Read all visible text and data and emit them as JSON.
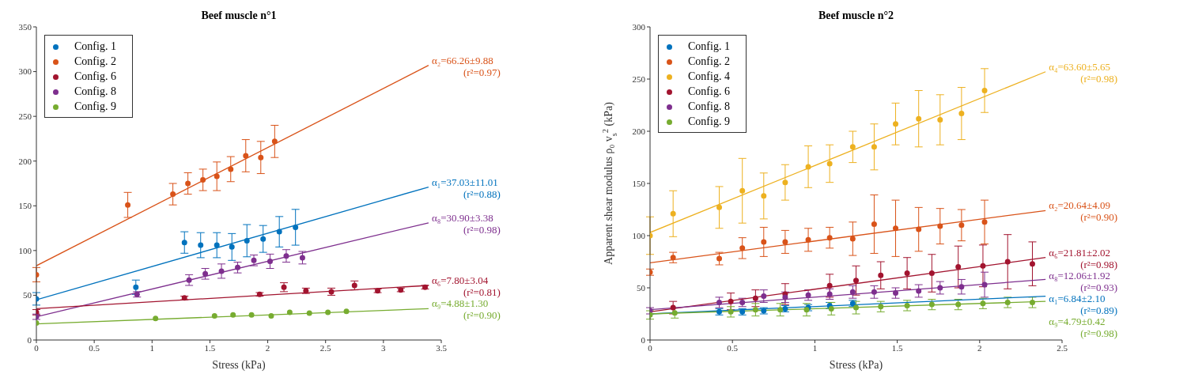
{
  "chart_data": [
    {
      "type": "scatter",
      "title": "Beef muscle n°1",
      "xlabel": "Stress (kPa)",
      "xlim": [
        0,
        3.5
      ],
      "xticks": [
        0,
        0.5,
        1,
        1.5,
        2,
        2.5,
        3,
        3.5
      ],
      "ylim": [
        0,
        350
      ],
      "yticks": [
        0,
        50,
        100,
        150,
        200,
        250,
        300,
        350
      ],
      "legend": "top left",
      "series": [
        {
          "name": "Config. 1",
          "color": "#0072bd",
          "x": [
            0,
            0.86,
            1.28,
            1.42,
            1.56,
            1.69,
            1.82,
            1.96,
            2.1,
            2.24
          ],
          "values": [
            46,
            59,
            109,
            106,
            106,
            104,
            111,
            113,
            121,
            126
          ],
          "errors": [
            7,
            8,
            12,
            14,
            14,
            15,
            18,
            15,
            17,
            20
          ]
        },
        {
          "name": "Config. 2",
          "color": "#d95319",
          "x": [
            0,
            0.79,
            1.18,
            1.31,
            1.44,
            1.56,
            1.68,
            1.81,
            1.94,
            2.06
          ],
          "values": [
            73,
            151,
            163,
            175,
            179,
            183,
            191,
            206,
            204,
            222
          ],
          "errors": [
            8,
            14,
            12,
            12,
            12,
            16,
            14,
            18,
            18,
            18
          ]
        },
        {
          "name": "Config. 6",
          "color": "#a2142f",
          "x": [
            0,
            1.28,
            1.93,
            2.14,
            2.33,
            2.55,
            2.75,
            2.95,
            3.15,
            3.36
          ],
          "values": [
            31,
            47,
            51,
            59,
            55,
            54,
            61,
            55,
            56,
            59
          ],
          "errors": [
            3,
            2,
            2,
            5,
            3,
            4,
            5,
            2,
            2,
            2
          ]
        },
        {
          "name": "Config. 8",
          "color": "#7e2f8e",
          "x": [
            0,
            0.87,
            1.32,
            1.46,
            1.6,
            1.74,
            1.88,
            2.02,
            2.16,
            2.3
          ],
          "values": [
            26,
            51,
            67,
            74,
            77,
            81,
            89,
            88,
            94,
            92
          ],
          "errors": [
            3,
            3,
            6,
            6,
            8,
            6,
            6,
            8,
            7,
            7
          ]
        },
        {
          "name": "Config. 9",
          "color": "#77ac30",
          "x": [
            0,
            1.03,
            1.54,
            1.7,
            1.86,
            2.03,
            2.19,
            2.36,
            2.52,
            2.68
          ],
          "values": [
            19,
            24,
            27,
            28,
            28,
            27,
            31,
            30,
            31,
            32
          ]
        },
        {
          "type": "line",
          "name": "α₂=66.26±9.88\n(r²=0.97)",
          "color": "#d95319",
          "x": [
            0,
            3.39
          ],
          "values": [
            83,
            307
          ]
        },
        {
          "type": "line",
          "name": "α₁=37.03±11.01\n(r²=0.88)",
          "color": "#0072bd",
          "x": [
            0,
            3.39
          ],
          "values": [
            45,
            171
          ]
        },
        {
          "type": "line",
          "name": "α₈=30.90±3.38\n(r²=0.98)",
          "color": "#7e2f8e",
          "x": [
            0,
            3.39
          ],
          "values": [
            26,
            131
          ]
        },
        {
          "type": "line",
          "name": "α₆=7.80±3.04\n(r²=0.81)",
          "color": "#a2142f",
          "x": [
            0,
            3.39
          ],
          "values": [
            35,
            61
          ]
        },
        {
          "type": "line",
          "name": "α₉=4.88±1.30\n(r²=0.90)",
          "color": "#77ac30",
          "x": [
            0,
            3.39
          ],
          "values": [
            18,
            35
          ]
        }
      ]
    },
    {
      "type": "scatter",
      "title": "Beef muscle n°2",
      "xlabel": "Stress (kPa)",
      "ylabel": "Apparent shear modulus ρ₀ v$_{s}$$^{2}$ (kPa)",
      "xlim": [
        0,
        2.5
      ],
      "xticks": [
        0,
        0.5,
        1,
        1.5,
        2,
        2.5
      ],
      "ylim": [
        0,
        300
      ],
      "yticks": [
        0,
        50,
        100,
        150,
        200,
        250,
        300
      ],
      "legend": "top left",
      "series": [
        {
          "name": "Config. 1",
          "color": "#0072bd",
          "x": [
            0.42,
            0.56,
            0.69,
            0.82,
            0.96,
            1.09,
            1.23
          ],
          "values": [
            27,
            27,
            28,
            30,
            31,
            33,
            35
          ],
          "errors": [
            3,
            3,
            3,
            3,
            3,
            3,
            3
          ]
        },
        {
          "name": "Config. 2",
          "color": "#d95319",
          "x": [
            0,
            0.14,
            0.42,
            0.56,
            0.69,
            0.82,
            0.96,
            1.09,
            1.23,
            1.36,
            1.49,
            1.63,
            1.76,
            1.89,
            2.03
          ],
          "values": [
            65,
            79,
            78,
            88,
            94,
            94,
            96,
            98,
            97,
            111,
            107,
            106,
            109,
            110,
            113
          ],
          "errors": [
            3,
            5,
            6,
            10,
            14,
            11,
            11,
            10,
            16,
            28,
            27,
            21,
            17,
            15,
            21
          ]
        },
        {
          "name": "Config. 4",
          "color": "#edb120",
          "x": [
            0,
            0.14,
            0.42,
            0.56,
            0.69,
            0.82,
            0.96,
            1.09,
            1.23,
            1.36,
            1.49,
            1.63,
            1.76,
            1.89,
            2.03
          ],
          "values": [
            100,
            121,
            127,
            143,
            138,
            151,
            166,
            169,
            185,
            185,
            207,
            212,
            211,
            217,
            239
          ],
          "errors": [
            18,
            22,
            20,
            31,
            22,
            17,
            20,
            18,
            15,
            22,
            20,
            27,
            24,
            25,
            21
          ]
        },
        {
          "name": "Config. 6",
          "color": "#a2142f",
          "x": [
            0.14,
            0.49,
            0.64,
            0.82,
            0.96,
            1.09,
            1.25,
            1.4,
            1.56,
            1.71,
            1.87,
            2.02,
            2.17,
            2.32
          ],
          "values": [
            31,
            37,
            40,
            44,
            null,
            52,
            57,
            62,
            64,
            64,
            70,
            71,
            75,
            73
          ],
          "errors": [
            6,
            8,
            8,
            10,
            null,
            11,
            14,
            13,
            15,
            18,
            20,
            20,
            26,
            21
          ]
        },
        {
          "name": "Config. 8",
          "color": "#7e2f8e",
          "x": [
            0,
            0.42,
            0.56,
            0.69,
            0.82,
            0.96,
            1.09,
            1.23,
            1.36,
            1.49,
            1.63,
            1.76,
            1.89,
            2.03
          ],
          "values": [
            28,
            36,
            36,
            42,
            41,
            43,
            44,
            46,
            46,
            45,
            47,
            50,
            51,
            53
          ],
          "errors": [
            3,
            5,
            4,
            6,
            5,
            5,
            5,
            6,
            6,
            5,
            6,
            6,
            7,
            12
          ]
        },
        {
          "name": "Config. 9",
          "color": "#77ac30",
          "x": [
            0,
            0.15,
            0.49,
            0.64,
            0.79,
            0.95,
            1.1,
            1.25,
            1.4,
            1.56,
            1.71,
            1.87,
            2.02,
            2.17,
            2.32
          ],
          "values": [
            24,
            26,
            27,
            29,
            29,
            29,
            30,
            31,
            32,
            33,
            34,
            34,
            35,
            36,
            36
          ],
          "errors": [
            4,
            5,
            5,
            6,
            6,
            6,
            6,
            6,
            5,
            5,
            5,
            5,
            5,
            5,
            5
          ]
        },
        {
          "type": "line",
          "name": "α₄=63.60±5.65\n(r²=0.98)",
          "color": "#edb120",
          "x": [
            0,
            2.4
          ],
          "values": [
            103,
            257
          ]
        },
        {
          "type": "line",
          "name": "α₂=20.64±4.09\n(r²=0.90)",
          "color": "#d95319",
          "x": [
            0,
            2.4
          ],
          "values": [
            74,
            124
          ]
        },
        {
          "type": "line",
          "name": "α₆=21.81±2.02\n(r²=0.98)",
          "color": "#a2142f",
          "x": [
            0,
            2.4
          ],
          "values": [
            27,
            79
          ]
        },
        {
          "type": "line",
          "name": "α₈=12.06±1.92\n(r²=0.93)",
          "color": "#7e2f8e",
          "x": [
            0,
            2.4
          ],
          "values": [
            29,
            58
          ]
        },
        {
          "type": "line",
          "name": "α₁=6.84±2.10\n(r²=0.89)",
          "color": "#0072bd",
          "x": [
            0,
            2.4
          ],
          "values": [
            25,
            42
          ]
        },
        {
          "type": "line",
          "name": "α₉=4.79±0.42\n(r²=0.98)",
          "color": "#77ac30",
          "x": [
            0,
            2.4
          ],
          "values": [
            25,
            37
          ]
        }
      ]
    }
  ]
}
